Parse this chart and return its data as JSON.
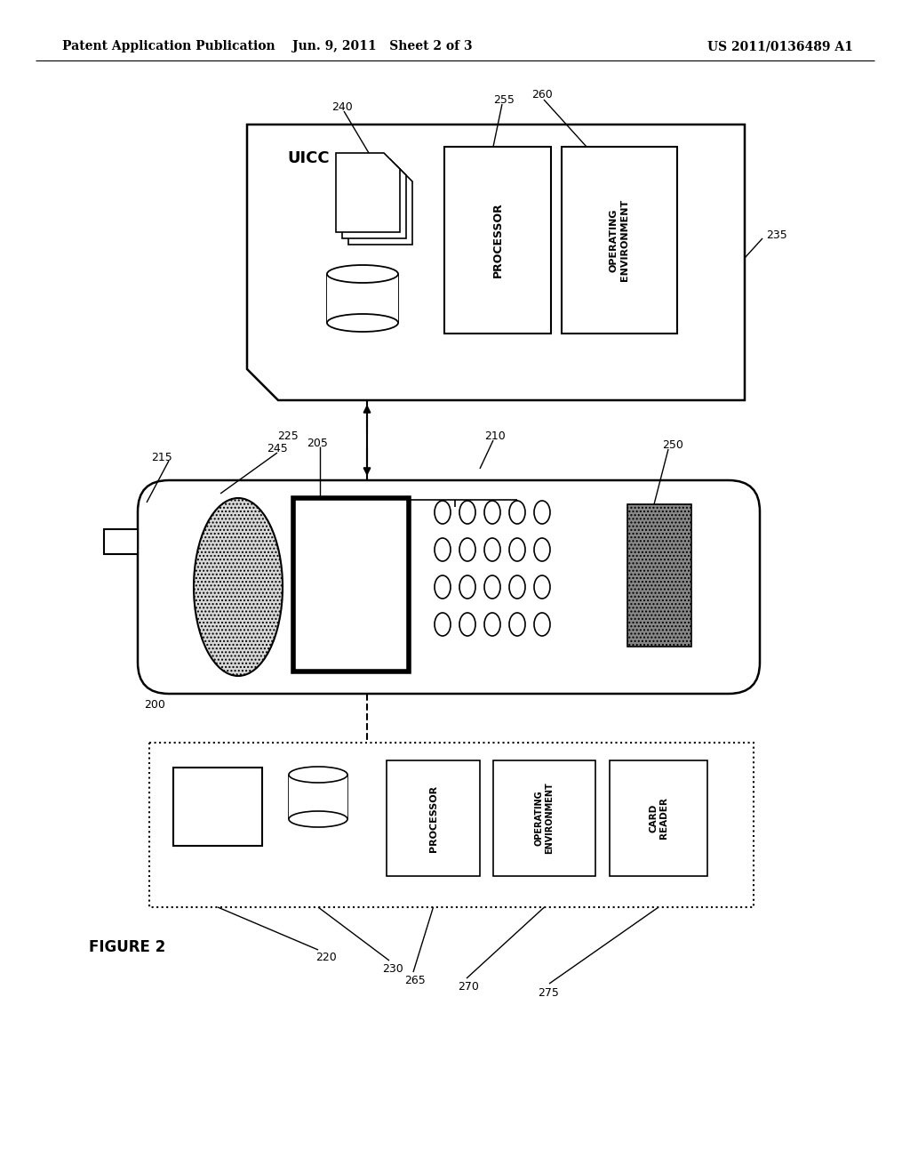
{
  "bg_color": "#ffffff",
  "line_color": "#000000",
  "header_left": "Patent Application Publication",
  "header_mid": "Jun. 9, 2011   Sheet 2 of 3",
  "header_right": "US 2011/0136489 A1"
}
